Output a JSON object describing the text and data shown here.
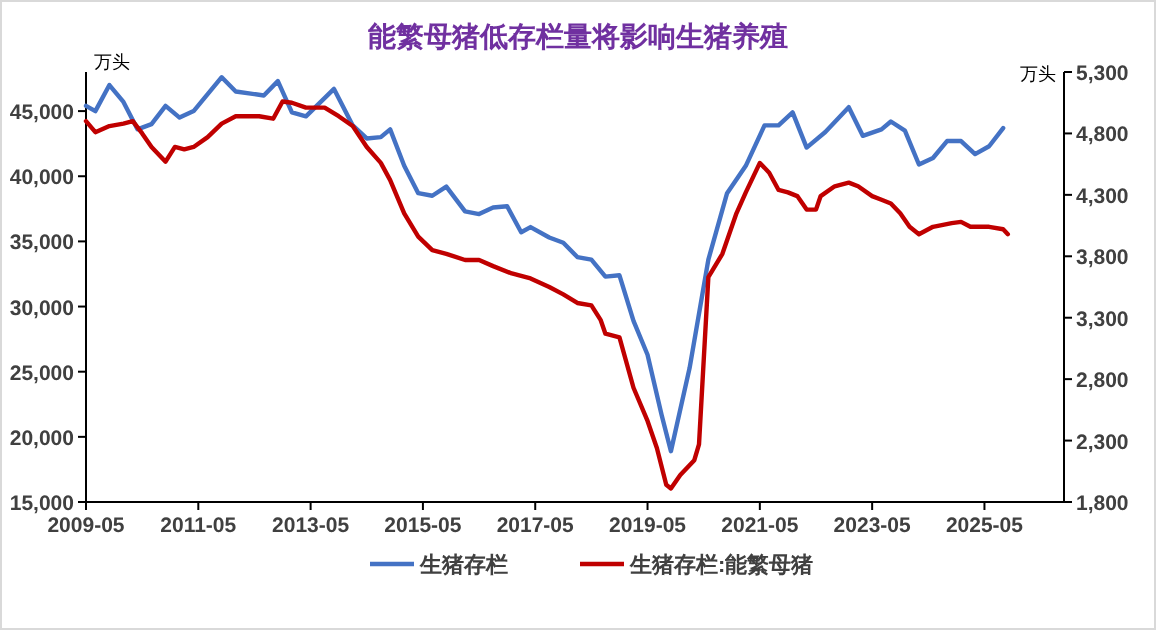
{
  "chart_data": {
    "type": "line",
    "title": "能繁母猪低存栏量将影响生猪养殖",
    "ylabel": "万头",
    "y2label": "万头",
    "legend": "bottom",
    "marker": "none",
    "grid": false,
    "xlim": [
      "2009-05",
      "2026-10"
    ],
    "xticks": [
      "2009-05",
      "2011-05",
      "2013-05",
      "2015-05",
      "2017-05",
      "2019-05",
      "2021-05",
      "2023-05",
      "2025-05"
    ],
    "ylim": [
      15000,
      48000
    ],
    "yticks": [
      {
        "value": 15000,
        "label": "15,000"
      },
      {
        "value": 20000,
        "label": "20,000"
      },
      {
        "value": 25000,
        "label": "25,000"
      },
      {
        "value": 30000,
        "label": "30,000"
      },
      {
        "value": 35000,
        "label": "35,000"
      },
      {
        "value": 40000,
        "label": "40,000"
      },
      {
        "value": 45000,
        "label": "45,000"
      }
    ],
    "y2lim": [
      1800,
      5300
    ],
    "y2ticks": [
      {
        "value": 1800,
        "label": "1,800"
      },
      {
        "value": 2300,
        "label": "2,300"
      },
      {
        "value": 2800,
        "label": "2,800"
      },
      {
        "value": 3300,
        "label": "3,300"
      },
      {
        "value": 3800,
        "label": "3,800"
      },
      {
        "value": 4300,
        "label": "4,300"
      },
      {
        "value": 4800,
        "label": "4,800"
      },
      {
        "value": 5300,
        "label": "5,300"
      }
    ],
    "series": [
      {
        "name": "生猪存栏",
        "color": "#4472c4",
        "x": [
          "2009-05",
          "2009-07",
          "2009-10",
          "2010-01",
          "2010-04",
          "2010-07",
          "2010-10",
          "2011-01",
          "2011-04",
          "2011-10",
          "2012-01",
          "2012-07",
          "2012-10",
          "2013-01",
          "2013-04",
          "2013-10",
          "2014-02",
          "2014-05",
          "2014-08",
          "2014-10",
          "2015-01",
          "2015-04",
          "2015-07",
          "2015-10",
          "2016-02",
          "2016-05",
          "2016-08",
          "2016-11",
          "2017-02",
          "2017-04",
          "2017-08",
          "2017-11",
          "2018-02",
          "2018-05",
          "2018-08",
          "2018-11",
          "2019-02",
          "2019-05",
          "2019-08",
          "2019-10",
          "2020-02",
          "2020-06",
          "2020-10",
          "2021-02",
          "2021-06",
          "2021-09",
          "2021-12",
          "2022-03",
          "2022-07",
          "2022-12",
          "2023-03",
          "2023-07",
          "2023-09",
          "2023-12",
          "2024-03",
          "2024-06",
          "2024-09",
          "2024-12",
          "2025-03",
          "2025-06",
          "2025-09"
        ],
        "values": [
          45400,
          45000,
          47000,
          45700,
          43600,
          44000,
          45400,
          44500,
          45000,
          47600,
          46500,
          46200,
          47300,
          44900,
          44600,
          46700,
          43900,
          42900,
          43000,
          43600,
          40800,
          38700,
          38500,
          39200,
          37300,
          37100,
          37600,
          37700,
          35700,
          36100,
          35300,
          34900,
          33800,
          33600,
          32300,
          32400,
          28900,
          26300,
          21700,
          18900,
          25300,
          33600,
          38700,
          40800,
          43900,
          43900,
          44900,
          42200,
          43400,
          45300,
          43100,
          43600,
          44200,
          43500,
          40900,
          41400,
          42700,
          42700,
          41700,
          42300,
          43700
        ]
      },
      {
        "name": "生猪存栏:能繁母猪",
        "color": "#c00000",
        "axis": "y2",
        "x": [
          "2009-05",
          "2009-07",
          "2009-10",
          "2010-01",
          "2010-03",
          "2010-05",
          "2010-07",
          "2010-10",
          "2010-12",
          "2011-02",
          "2011-04",
          "2011-07",
          "2011-10",
          "2012-01",
          "2012-06",
          "2012-09",
          "2012-11",
          "2013-01",
          "2013-04",
          "2013-08",
          "2013-11",
          "2014-02",
          "2014-05",
          "2014-08",
          "2014-10",
          "2015-01",
          "2015-04",
          "2015-07",
          "2015-10",
          "2016-02",
          "2016-05",
          "2016-08",
          "2016-12",
          "2017-04",
          "2017-08",
          "2017-11",
          "2018-02",
          "2018-05",
          "2018-07",
          "2018-08",
          "2018-11",
          "2019-02",
          "2019-05",
          "2019-07",
          "2019-09",
          "2019-10",
          "2019-12",
          "2020-03",
          "2020-04",
          "2020-06",
          "2020-09",
          "2020-12",
          "2021-02",
          "2021-05",
          "2021-07",
          "2021-09",
          "2021-11",
          "2022-01",
          "2022-03",
          "2022-05",
          "2022-06",
          "2022-09",
          "2022-12",
          "2023-02",
          "2023-05",
          "2023-07",
          "2023-09",
          "2023-11",
          "2024-01",
          "2024-03",
          "2024-06",
          "2024-10",
          "2024-12",
          "2025-02",
          "2025-06",
          "2025-09",
          "2025-10"
        ],
        "values": [
          4900,
          4810,
          4860,
          4880,
          4900,
          4800,
          4690,
          4570,
          4690,
          4670,
          4690,
          4770,
          4880,
          4940,
          4940,
          4920,
          5060,
          5050,
          5010,
          5010,
          4940,
          4860,
          4690,
          4560,
          4420,
          4150,
          3960,
          3850,
          3820,
          3770,
          3770,
          3720,
          3660,
          3620,
          3550,
          3490,
          3420,
          3400,
          3280,
          3170,
          3140,
          2730,
          2460,
          2240,
          1940,
          1910,
          2020,
          2140,
          2270,
          3630,
          3820,
          4150,
          4320,
          4560,
          4480,
          4340,
          4320,
          4290,
          4180,
          4180,
          4290,
          4370,
          4400,
          4370,
          4290,
          4260,
          4230,
          4150,
          4040,
          3980,
          4040,
          4070,
          4080,
          4040,
          4040,
          4020,
          3980
        ]
      }
    ]
  }
}
